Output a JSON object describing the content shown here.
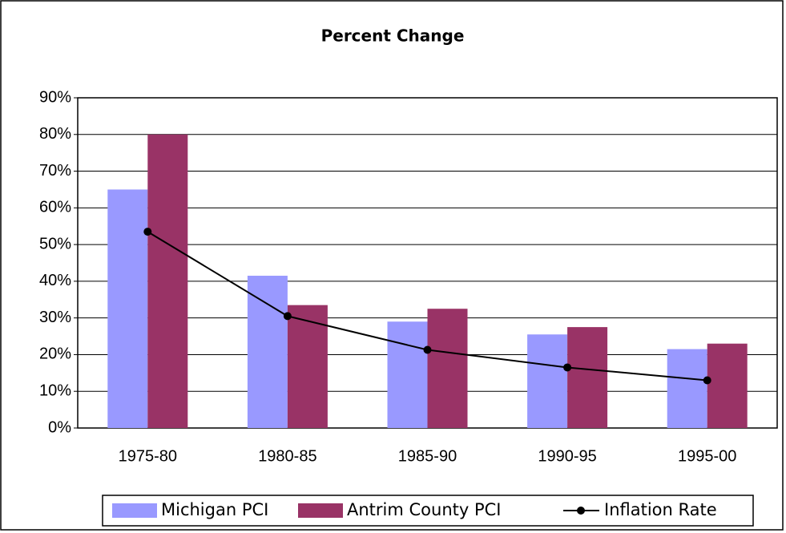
{
  "chart_data": {
    "type": "bar",
    "title": "Percent Change",
    "categories": [
      "1975-80",
      "1980-85",
      "1985-90",
      "1990-95",
      "1995-00"
    ],
    "series": [
      {
        "name": "Michigan PCI",
        "type": "bar",
        "color": "#9999ff",
        "values": [
          65,
          41.5,
          29,
          25.5,
          21.5
        ]
      },
      {
        "name": "Antrim County PCI",
        "type": "bar",
        "color": "#993366",
        "values": [
          80,
          33.5,
          32.5,
          27.5,
          23
        ]
      },
      {
        "name": "Inflation Rate",
        "type": "line",
        "color": "#000000",
        "values": [
          53.5,
          30.5,
          21.3,
          16.5,
          13
        ]
      }
    ],
    "ylim": [
      0,
      90
    ],
    "yticks": [
      {
        "value": 0,
        "label": "0%"
      },
      {
        "value": 10,
        "label": "10%"
      },
      {
        "value": 20,
        "label": "20%"
      },
      {
        "value": 30,
        "label": "30%"
      },
      {
        "value": 40,
        "label": "40%"
      },
      {
        "value": 50,
        "label": "50%"
      },
      {
        "value": 60,
        "label": "60%"
      },
      {
        "value": 70,
        "label": "70%"
      },
      {
        "value": 80,
        "label": "80%"
      },
      {
        "value": 90,
        "label": "90%"
      }
    ],
    "grid": true,
    "legend": "bottom"
  }
}
